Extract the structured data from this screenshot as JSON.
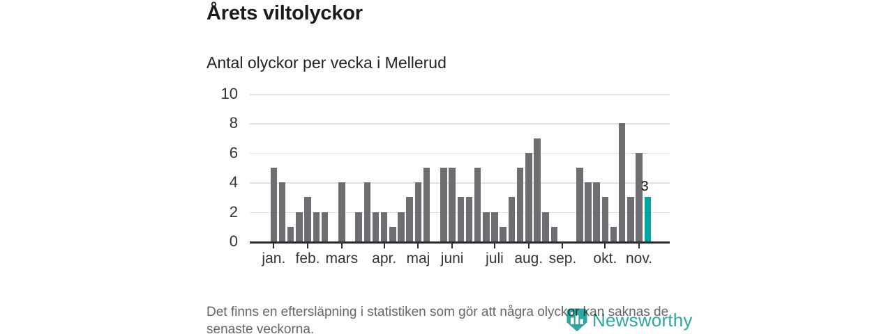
{
  "header": {
    "title": "Årets viltolyckor",
    "subtitle": "Antal olyckor per vecka i Mellerud"
  },
  "chart_data": {
    "type": "bar",
    "title": "Årets viltolyckor",
    "subtitle": "Antal olyckor per vecka i Mellerud",
    "x_unit": "vecka",
    "values": [
      5,
      4,
      1,
      2,
      3,
      2,
      2,
      0,
      4,
      0,
      2,
      4,
      2,
      2,
      1,
      2,
      3,
      4,
      5,
      0,
      5,
      5,
      3,
      3,
      5,
      2,
      2,
      1,
      3,
      5,
      6,
      7,
      2,
      1,
      0,
      0,
      5,
      4,
      4,
      3,
      1,
      8,
      3,
      6,
      3
    ],
    "highlight_index": 44,
    "highlight_value": 3,
    "highlight_value_label": "3",
    "ylim": [
      0,
      10
    ],
    "y_ticks": [
      0,
      2,
      4,
      6,
      8,
      10
    ],
    "x_month_labels": [
      "jan.",
      "feb.",
      "mars",
      "apr.",
      "maj",
      "juni",
      "juli",
      "aug.",
      "sep.",
      "okt.",
      "nov."
    ],
    "x_month_tick_indices": [
      0,
      4,
      8,
      13,
      17,
      21,
      26,
      30,
      34,
      39,
      43
    ],
    "grid": true,
    "legend": false,
    "colors": {
      "bar": "#6d6d72",
      "highlight": "#00a5a0",
      "gridline": "#e2e2e2",
      "axis": "#2d2d2d"
    }
  },
  "footer": {
    "note": "Det finns en eftersläpning i statistiken som gör att några olyckor kan saknas de senaste veckorna."
  },
  "brand": {
    "name": "Newsworthy",
    "color": "#2fa69f"
  }
}
